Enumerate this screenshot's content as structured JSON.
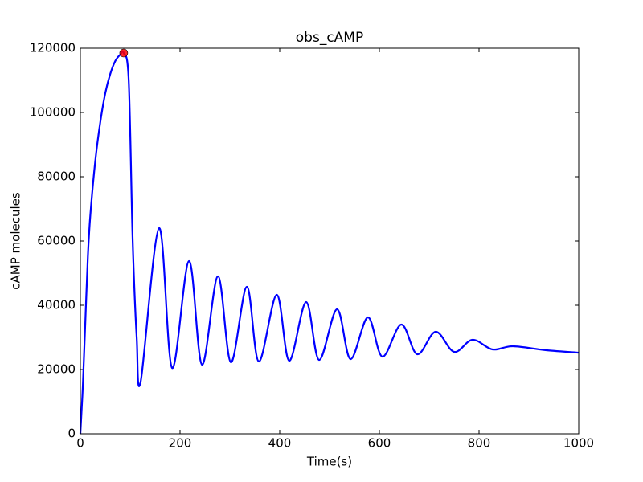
{
  "chart_data": {
    "type": "line",
    "title": "obs_cAMP",
    "xlabel": "Time(s)",
    "ylabel": "cAMP molecules",
    "x": [
      0,
      5,
      10,
      15,
      20,
      30,
      40,
      50,
      60,
      70,
      80,
      87,
      97,
      105,
      113,
      121,
      158,
      184,
      218,
      244,
      276,
      302,
      334,
      358,
      394,
      419,
      453,
      479,
      515,
      542,
      577,
      606,
      644,
      676,
      713,
      750,
      787,
      827,
      868,
      935,
      1000
    ],
    "series": [
      {
        "color": "#0000ff",
        "values": [
          0,
          15000,
          35000,
          55000,
          68000,
          85000,
          97000,
          106000,
          112000,
          116000,
          118000,
          118500,
          110000,
          60000,
          30000,
          16250,
          64000,
          20500,
          53750,
          21500,
          49000,
          22250,
          45750,
          22500,
          43250,
          22750,
          41000,
          23000,
          38750,
          23250,
          36250,
          24000,
          34000,
          24750,
          31750,
          25500,
          29250,
          26250,
          27250,
          26000,
          25250
        ]
      }
    ],
    "highlight": {
      "x": 87,
      "y": 118500,
      "color": "#ff0000"
    },
    "xlim": [
      0,
      1000
    ],
    "xticks": [
      0,
      200,
      400,
      600,
      800,
      1000
    ],
    "ylim": [
      0,
      120000
    ],
    "yticks": [
      0,
      20000,
      40000,
      60000,
      80000,
      100000,
      120000
    ],
    "grid": false
  }
}
